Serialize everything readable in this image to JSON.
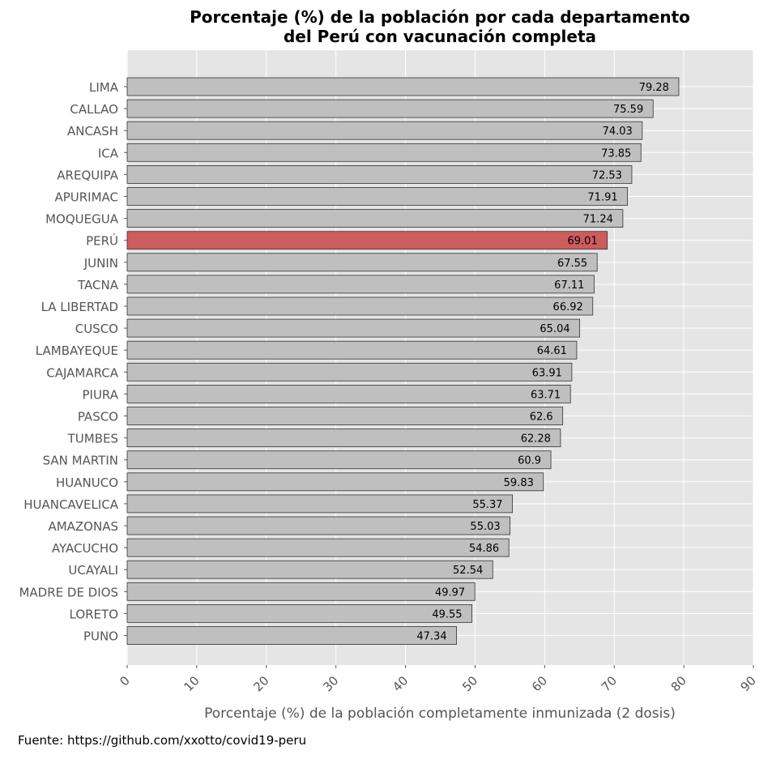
{
  "chart_data": {
    "type": "bar",
    "orientation": "horizontal",
    "title": "Porcentaje (%) de la población por cada departamento\ndel Perú con vacunación completa",
    "xlabel": "Porcentaje (%) de la población completamente inmunizada (2 dosis)",
    "ylabel": "",
    "xlim": [
      0,
      90
    ],
    "xticks": [
      0,
      10,
      20,
      30,
      40,
      50,
      60,
      70,
      80,
      90
    ],
    "grid": true,
    "highlight_category": "PERÚ",
    "categories": [
      "LIMA",
      "CALLAO",
      "ANCASH",
      "ICA",
      "AREQUIPA",
      "APURIMAC",
      "MOQUEGUA",
      "PERÚ",
      "JUNIN",
      "TACNA",
      "LA LIBERTAD",
      "CUSCO",
      "LAMBAYEQUE",
      "CAJAMARCA",
      "PIURA",
      "PASCO",
      "TUMBES",
      "SAN MARTIN",
      "HUANUCO",
      "HUANCAVELICA",
      "AMAZONAS",
      "AYACUCHO",
      "UCAYALI",
      "MADRE DE DIOS",
      "LORETO",
      "PUNO"
    ],
    "values": [
      79.28,
      75.59,
      74.03,
      73.85,
      72.53,
      71.91,
      71.24,
      69.01,
      67.55,
      67.11,
      66.92,
      65.04,
      64.61,
      63.91,
      63.71,
      62.6,
      62.28,
      60.9,
      59.83,
      55.37,
      55.03,
      54.86,
      52.54,
      49.97,
      49.55,
      47.34
    ],
    "data_labels": [
      "79.28",
      "75.59",
      "74.03",
      "73.85",
      "72.53",
      "71.91",
      "71.24",
      "69.01",
      "67.55",
      "67.11",
      "66.92",
      "65.04",
      "64.61",
      "63.91",
      "63.71",
      "62.6",
      "62.28",
      "60.9",
      "59.83",
      "55.37",
      "55.03",
      "54.86",
      "52.54",
      "49.97",
      "49.55",
      "47.34"
    ]
  },
  "colors": {
    "plot_background": "#e5e5e5",
    "grid": "#ffffff",
    "bar_default": "#bfbfbf",
    "bar_highlight": "#cd5c5c",
    "bar_edge": "#333333",
    "tick_text": "#555555",
    "title_text": "#000000"
  },
  "footer": {
    "source": "Fuente: https://github.com/xxotto/covid19-peru"
  }
}
